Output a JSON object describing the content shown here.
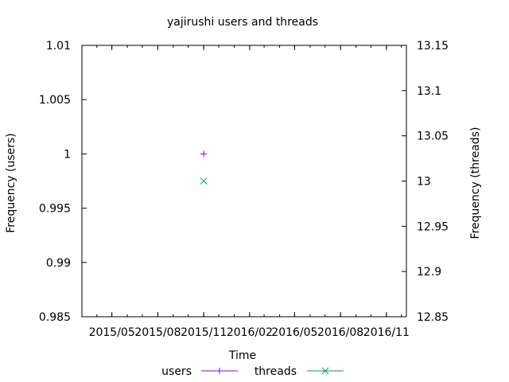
{
  "chart_data": {
    "type": "scatter",
    "title": "yajirushi users and threads",
    "xlabel": "Time",
    "ylabel_left": "Frequency (users)",
    "ylabel_right": "Frequency (threads)",
    "x_tick_labels": [
      "2015/05",
      "2015/08",
      "2015/11",
      "2016/02",
      "2016/05",
      "2016/08",
      "2016/11"
    ],
    "x_tick_positions": [
      "2015-05-01",
      "2015-08-01",
      "2015-11-01",
      "2016-02-01",
      "2016-05-01",
      "2016-08-01",
      "2016-11-01"
    ],
    "x_range": [
      "2015-03-02",
      "2016-12-11"
    ],
    "ylim_left": [
      0.985,
      1.01
    ],
    "ylim_right": [
      12.85,
      13.15
    ],
    "y_ticks_left": [
      "0.985",
      "0.99",
      "0.995",
      "1",
      "1.005",
      "1.01"
    ],
    "y_ticks_right": [
      "12.85",
      "12.9",
      "12.95",
      "13",
      "13.05",
      "13.1",
      "13.15"
    ],
    "legend_position": "bottom",
    "grid": false,
    "series": [
      {
        "name": "users",
        "axis": "left",
        "marker": "plus",
        "color": "#9400d3",
        "x": [
          "2015-11-01"
        ],
        "y": [
          1
        ]
      },
      {
        "name": "threads",
        "axis": "right",
        "marker": "cross",
        "color": "#009e73",
        "x": [
          "2015-11-01"
        ],
        "y": [
          13
        ]
      }
    ]
  }
}
